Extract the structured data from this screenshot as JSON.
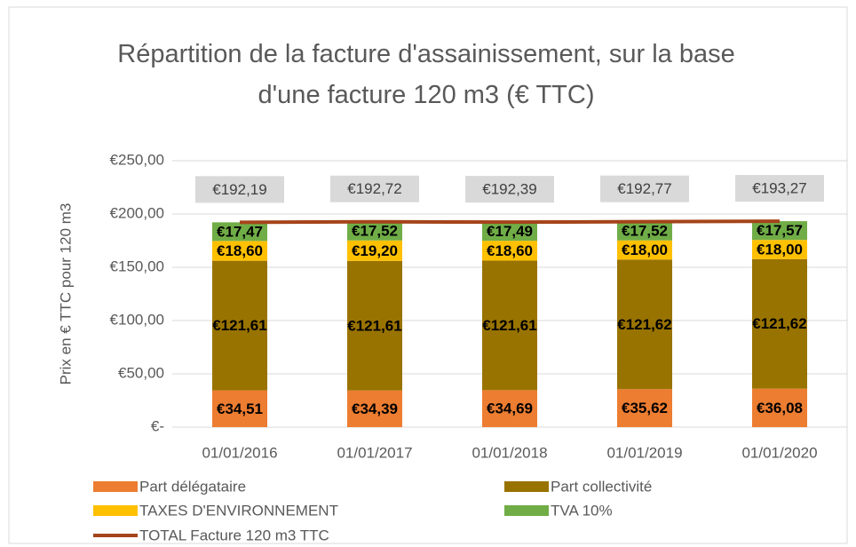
{
  "chart_data": {
    "type": "bar",
    "stacked": true,
    "title": "Répartition de la facture d'assainissement, sur la base d'une facture 120 m3 (€ TTC)",
    "y_label": "Prix en € TTC pour 120 m3",
    "categories": [
      "01/01/2016",
      "01/01/2017",
      "01/01/2018",
      "01/01/2019",
      "01/01/2020"
    ],
    "ylim": [
      0,
      250
    ],
    "yticks": [
      {
        "value": 0,
        "label": "€-"
      },
      {
        "value": 50,
        "label": "€50,00"
      },
      {
        "value": 100,
        "label": "€100,00"
      },
      {
        "value": 150,
        "label": "€150,00"
      },
      {
        "value": 200,
        "label": "€200,00"
      },
      {
        "value": 250,
        "label": "€250,00"
      }
    ],
    "grid": true,
    "legend": "bottom",
    "series": [
      {
        "name": "Part délégataire",
        "type": "bar",
        "color": "#ed7d31",
        "values": [
          34.51,
          34.39,
          34.69,
          35.62,
          36.08
        ],
        "value_labels": [
          "€34,51",
          "€34,39",
          "€34,69",
          "€35,62",
          "€36,08"
        ]
      },
      {
        "name": "Part collectivité",
        "type": "bar",
        "color": "#997300",
        "values": [
          121.61,
          121.61,
          121.61,
          121.62,
          121.62
        ],
        "value_labels": [
          "€121,61",
          "€121,61",
          "€121,61",
          "€121,62",
          "€121,62"
        ]
      },
      {
        "name": "TAXES D'ENVIRONNEMENT",
        "type": "bar",
        "color": "#ffc000",
        "values": [
          18.6,
          19.2,
          18.6,
          18.0,
          18.0
        ],
        "value_labels": [
          "€18,60",
          "€19,20",
          "€18,60",
          "€18,00",
          "€18,00"
        ]
      },
      {
        "name": "TVA 10%",
        "type": "bar",
        "color": "#70ad47",
        "values": [
          17.47,
          17.52,
          17.49,
          17.52,
          17.57
        ],
        "value_labels": [
          "€17,47",
          "€17,52",
          "€17,49",
          "€17,52",
          "€17,57"
        ]
      },
      {
        "name": "TOTAL Facture 120 m3 TTC",
        "type": "line",
        "color": "#a5441a",
        "values": [
          192.19,
          192.72,
          192.39,
          192.77,
          193.27
        ],
        "value_labels": [
          "€192,19",
          "€192,72",
          "€192,39",
          "€192,77",
          "€193,27"
        ]
      }
    ]
  }
}
